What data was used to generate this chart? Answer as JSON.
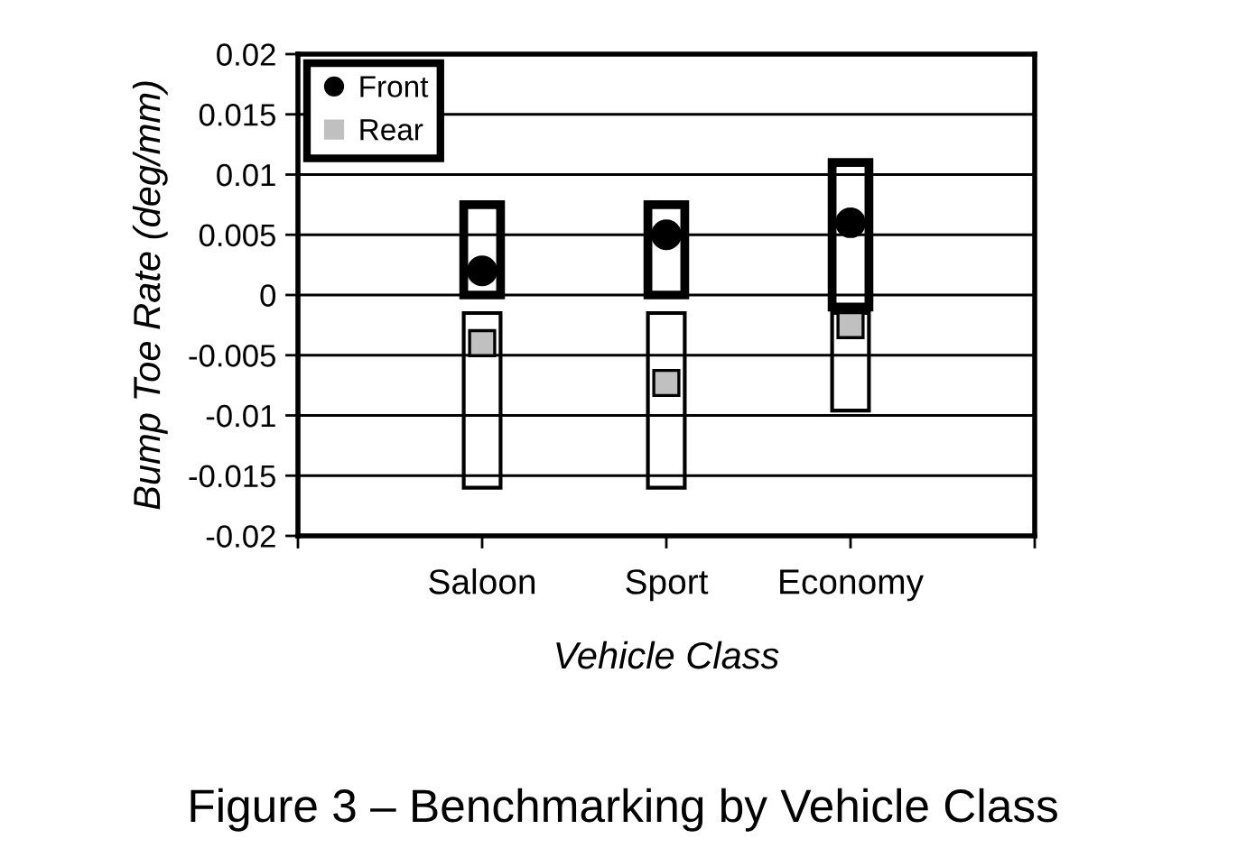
{
  "chart_data": {
    "type": "bar",
    "title": "Figure 3 – Benchmarking by Vehicle Class",
    "xlabel": "Vehicle Class",
    "ylabel": "Bump Toe Rate (deg/mm)",
    "categories": [
      "Saloon",
      "Sport",
      "Economy"
    ],
    "series": [
      {
        "color": "#000000",
        "base": [
          0,
          0,
          -0.001
        ],
        "values": [
          0.0075,
          0.0075,
          0.012
        ]
      },
      {
        "color": "#000000",
        "base": [
          -0.016,
          -0.016,
          -0.0096
        ],
        "values": [
          0.0145,
          0.0145,
          0.0081
        ]
      },
      {
        "type": "scatter",
        "name": "Front",
        "color": "#000000",
        "marker": "circle",
        "x": [
          "Saloon",
          "Sport",
          "Economy"
        ],
        "values": [
          0.002,
          0.005,
          0.006
        ]
      },
      {
        "type": "scatter",
        "name": "Rear",
        "color": "#c0c0c0",
        "marker": "square",
        "x": [
          "Saloon",
          "Sport",
          "Economy"
        ],
        "values": [
          -0.004,
          -0.0073,
          -0.0025
        ]
      }
    ],
    "ylim": [
      -0.02,
      0.02
    ],
    "yticks": [
      -0.02,
      -0.015,
      -0.01,
      -0.005,
      0,
      0.005,
      0.01,
      0.015,
      0.02
    ],
    "grid": "y",
    "legend": "top left"
  }
}
